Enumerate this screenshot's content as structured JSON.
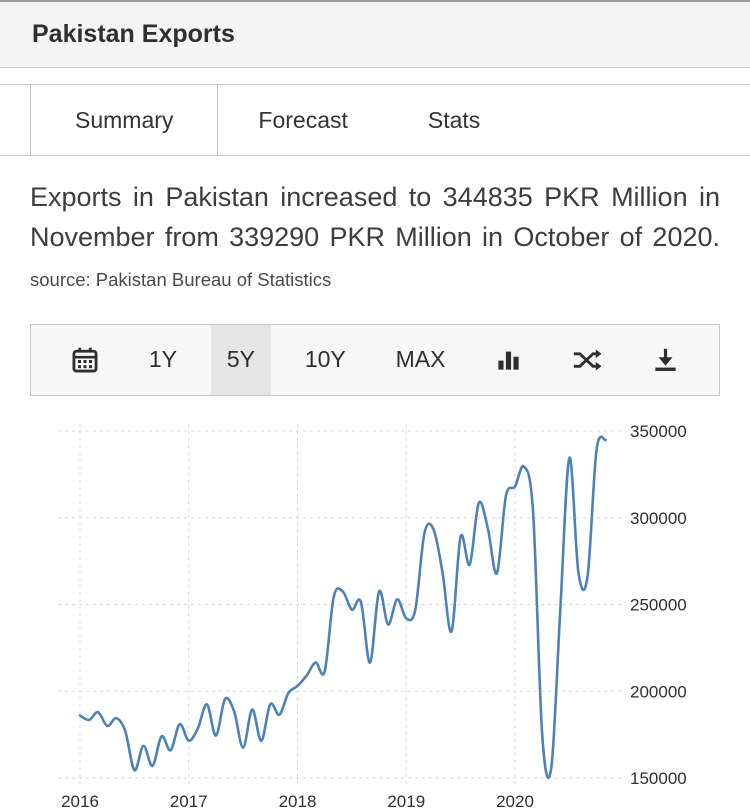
{
  "header": {
    "title": "Pakistan Exports"
  },
  "tabs": [
    {
      "label": "Summary",
      "active": true
    },
    {
      "label": "Forecast",
      "active": false
    },
    {
      "label": "Stats",
      "active": false
    }
  ],
  "summary": {
    "text": "Exports in Pakistan increased to 344835 PKR Million in November from 339290 PKR Million in October of 2020.",
    "source_text": "source: Pakistan Bureau of Statistics"
  },
  "toolbar": {
    "calendar_icon": "calendar-icon",
    "range_buttons": [
      {
        "label": "1Y",
        "active": false
      },
      {
        "label": "5Y",
        "active": true
      },
      {
        "label": "10Y",
        "active": false
      },
      {
        "label": "MAX",
        "active": false
      }
    ],
    "chart_type_icon": "bar-chart-icon",
    "compare_icon": "compare-shuffle-icon",
    "download_icon": "download-icon"
  },
  "chart_data": {
    "type": "line",
    "title": "Pakistan Exports",
    "ylabel": "PKR Million",
    "x_start": "2016-01",
    "x_interval": "monthly",
    "line_color": "#4d82b8",
    "grid": "dashed",
    "y_axis_position": "right",
    "ylim": [
      150000,
      350000
    ],
    "y_ticks": [
      150000,
      200000,
      250000,
      300000,
      350000
    ],
    "x_ticks": [
      2016,
      2017,
      2018,
      2019,
      2020
    ],
    "x_tick_labels": [
      "2016",
      "2017",
      "2018",
      "2019",
      "2020"
    ],
    "values": [
      186000,
      183500,
      188000,
      180000,
      184500,
      177000,
      154500,
      168500,
      157000,
      174000,
      166000,
      181000,
      171500,
      178500,
      192500,
      174500,
      195500,
      188500,
      167500,
      189500,
      171500,
      192500,
      186500,
      199000,
      203000,
      209000,
      216500,
      211500,
      254500,
      257500,
      247000,
      251500,
      216500,
      257500,
      238500,
      253000,
      242000,
      247000,
      291000,
      293500,
      268500,
      234500,
      289000,
      273000,
      308500,
      294000,
      268000,
      312500,
      318000,
      329500,
      303000,
      175000,
      156000,
      247000,
      334500,
      268500,
      266000,
      339290,
      344835
    ]
  }
}
